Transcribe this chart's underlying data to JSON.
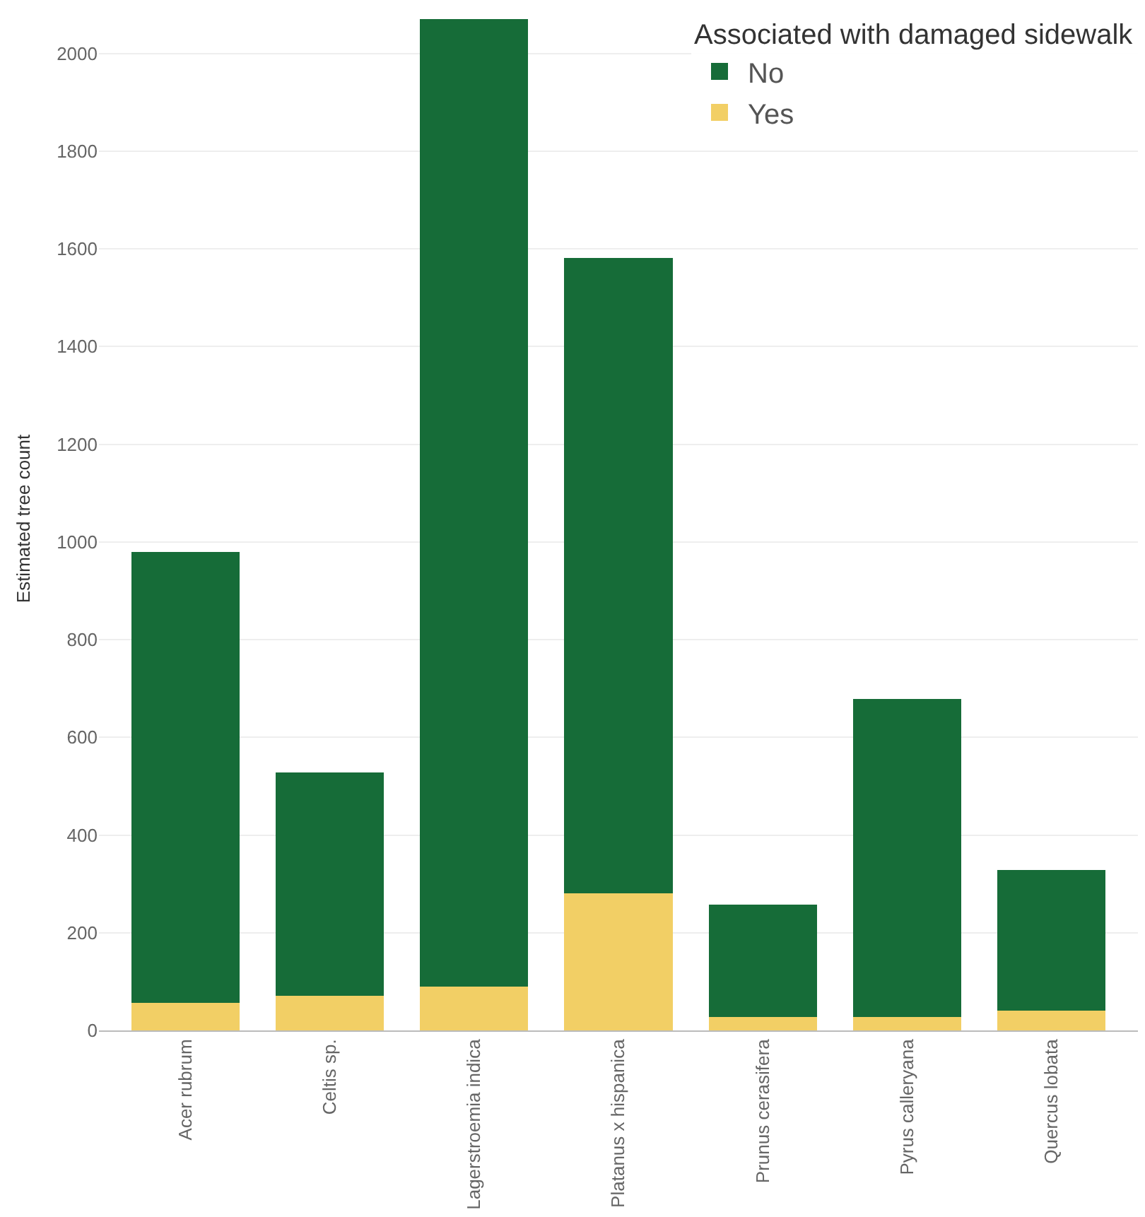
{
  "chart_data": {
    "type": "bar",
    "stacked": true,
    "ylabel": "Estimated tree count",
    "legend_title": "Associated with damaged sidewalk",
    "legend": "top right",
    "grid": "y",
    "categories": [
      "Acer rubrum",
      "Celtis sp.",
      "Lagerstroemia indica",
      "Platanus x hispanica",
      "Prunus cerasifera",
      "Pyrus calleryana",
      "Quercus lobata"
    ],
    "series": [
      {
        "name": "Yes",
        "color": "#f2cf65",
        "values": [
          56,
          71,
          90,
          280,
          28,
          28,
          40
        ]
      },
      {
        "name": "No",
        "color": "#166c38",
        "values": [
          924,
          457,
          1981,
          1302,
          229,
          650,
          288
        ]
      }
    ],
    "ylim": [
      0,
      2095
    ],
    "yticks": [
      0,
      200,
      400,
      600,
      800,
      1000,
      1200,
      1400,
      1600,
      1800,
      2000
    ]
  }
}
